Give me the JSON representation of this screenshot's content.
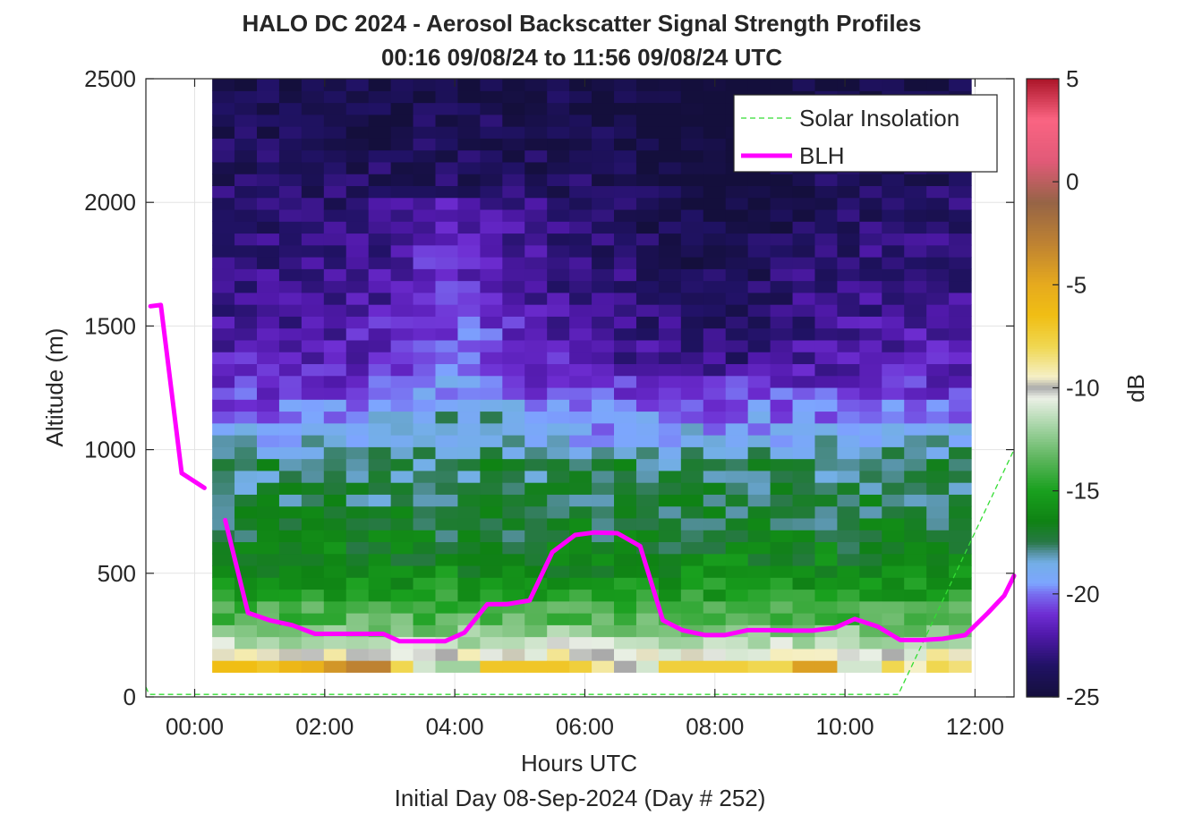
{
  "chart_data": {
    "type": "heatmap",
    "title": "HALO DC 2024 - Aerosol Backscatter Signal Strength Profiles",
    "subtitle": "00:16 09/08/24 to 11:56 09/08/24  UTC",
    "xlabel": "Hours UTC",
    "ylabel": "Altitude (m)",
    "footer": "Initial Day 08-Sep-2024 (Day # 252)",
    "xlim": [
      -0.75,
      12.6
    ],
    "ylim": [
      0,
      2500
    ],
    "x_ticks": [
      0,
      2,
      4,
      6,
      8,
      10,
      12
    ],
    "x_tick_labels": [
      "00:00",
      "02:00",
      "04:00",
      "06:00",
      "08:00",
      "10:00",
      "12:00"
    ],
    "y_ticks": [
      0,
      500,
      1000,
      1500,
      2000,
      2500
    ],
    "y_tick_labels": [
      "0",
      "500",
      "1000",
      "1500",
      "2000",
      "2500"
    ],
    "grid": true,
    "colorbar": {
      "label": "dB",
      "range": [
        -25,
        5
      ],
      "ticks": [
        5,
        0,
        -5,
        -10,
        -15,
        -20,
        -25
      ],
      "tick_labels": [
        "5",
        "0",
        "-5",
        "-10",
        "-15",
        "-20",
        "-25"
      ]
    },
    "heatmap": {
      "x_start": 0.27,
      "x_end": 11.94,
      "n_columns": 34,
      "y_bottom": 100,
      "y_top": 2500,
      "n_rows": 50,
      "profile_anchors_alt_m": [
        100,
        150,
        200,
        250,
        300,
        400,
        500,
        650,
        800,
        950,
        1050,
        1150,
        1300,
        1450,
        1600,
        1800,
        2000,
        2250,
        2500
      ],
      "profile_anchors_dB": [
        -7,
        -9,
        -11,
        -12,
        -13.5,
        -14.5,
        -15.5,
        -16.5,
        -17,
        -17.5,
        -19,
        -20,
        -21.5,
        -22,
        -22.5,
        -23,
        -23.5,
        -24,
        -24.5
      ],
      "bottom_layer_dB": [
        -6.5,
        -6.5,
        -7,
        -6,
        -5.5,
        -4,
        -3,
        -3,
        -8,
        -11,
        -12,
        -12,
        -7,
        -7,
        -7,
        -7,
        -7.5,
        -9,
        -10,
        -11,
        -7.5,
        -7.5,
        -7.5,
        -7.5,
        -8,
        -8,
        -4.5,
        -4.5,
        -11,
        -11,
        -8,
        -9.5,
        -8,
        -8.5
      ]
    },
    "series": [
      {
        "name": "Solar Insolation",
        "style": "dashed",
        "color": "#33dd33",
        "segments": [
          [
            [
              -0.75,
              40
            ],
            [
              -0.7,
              10
            ],
            [
              10.82,
              10
            ],
            [
              12.6,
              1000
            ]
          ]
        ]
      },
      {
        "name": "BLH",
        "style": "solid",
        "color": "#ff00ff",
        "segments": [
          [
            [
              -0.68,
              1580
            ],
            [
              -0.52,
              1585
            ],
            [
              -0.2,
              905
            ],
            [
              0.15,
              845
            ]
          ],
          [
            [
              0.47,
              715
            ],
            [
              0.82,
              340
            ],
            [
              1.15,
              310
            ],
            [
              1.5,
              290
            ],
            [
              1.85,
              255
            ],
            [
              2.2,
              255
            ],
            [
              2.6,
              255
            ],
            [
              2.9,
              255
            ],
            [
              3.15,
              225
            ],
            [
              3.5,
              225
            ],
            [
              3.85,
              225
            ],
            [
              4.15,
              260
            ],
            [
              4.5,
              375
            ],
            [
              4.8,
              375
            ],
            [
              5.15,
              390
            ],
            [
              5.5,
              585
            ],
            [
              5.85,
              655
            ],
            [
              6.15,
              665
            ],
            [
              6.5,
              662
            ],
            [
              6.85,
              610
            ],
            [
              7.2,
              310
            ],
            [
              7.5,
              270
            ],
            [
              7.85,
              250
            ],
            [
              8.15,
              250
            ],
            [
              8.5,
              270
            ],
            [
              8.85,
              270
            ],
            [
              9.15,
              268
            ],
            [
              9.5,
              268
            ],
            [
              9.85,
              280
            ],
            [
              10.15,
              315
            ],
            [
              10.5,
              285
            ],
            [
              10.85,
              230
            ],
            [
              11.2,
              230
            ],
            [
              11.5,
              235
            ],
            [
              11.85,
              250
            ],
            [
              12.2,
              340
            ],
            [
              12.45,
              410
            ],
            [
              12.6,
              490
            ]
          ]
        ]
      }
    ],
    "legend": {
      "placement": "top-right",
      "entries": [
        "Solar Insolation",
        "BLH"
      ]
    }
  }
}
